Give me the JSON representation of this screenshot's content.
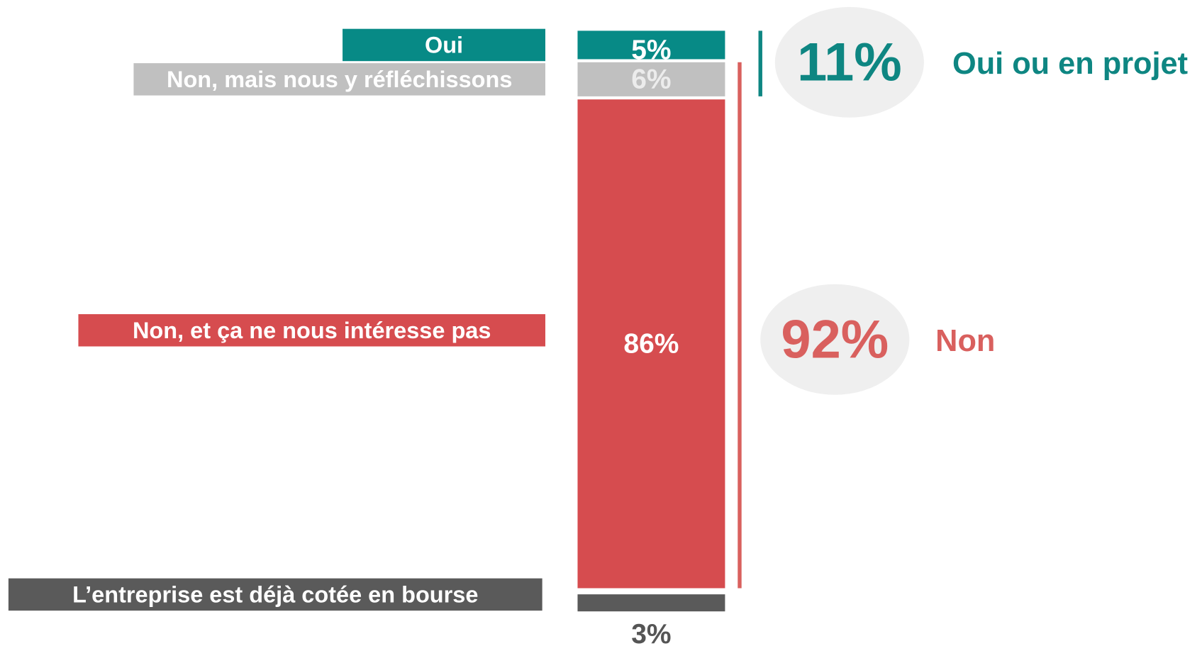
{
  "chart_data": {
    "type": "bar",
    "stacked": true,
    "categories": [
      "Oui",
      "Non, mais nous y réfléchissons",
      "Non, et ça ne nous intéresse pas",
      "L’entreprise est déjà cotée en bourse"
    ],
    "values": [
      5,
      6,
      86,
      3
    ],
    "value_labels": [
      "5%",
      "6%",
      "86%",
      "3%"
    ],
    "colors": [
      "#078a86",
      "#c0c0c0",
      "#d64c4f",
      "#5a5a5a"
    ],
    "summaries": {
      "labels": [
        "Oui ou en projet",
        "Non"
      ],
      "values": [
        11,
        92
      ],
      "value_labels": [
        "11%",
        "92%"
      ],
      "colors": [
        "#0e8682",
        "#d9605e"
      ]
    }
  }
}
